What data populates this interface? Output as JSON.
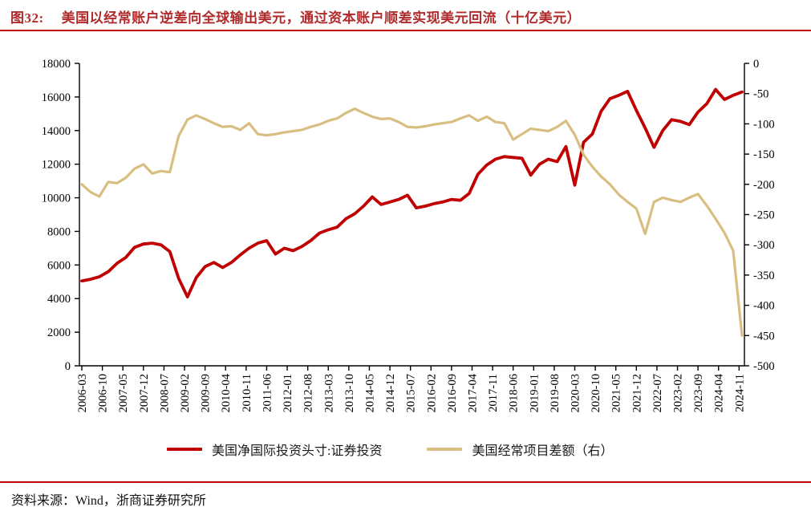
{
  "header": {
    "figure_no": "图32:",
    "title": "美国以经常账户逆差向全球输出美元，通过资本账户顺差实现美元回流（十亿美元）"
  },
  "source": "资料来源：Wind，浙商证券研究所",
  "colors": {
    "accent_rule": "#C00000",
    "title_text": "#B02B2B",
    "axis": "#000000",
    "line_red": "#C00000",
    "line_tan": "#D9BE82"
  },
  "chart_data": {
    "type": "line",
    "title": "美国以经常账户逆差向全球输出美元，通过资本账户顺差实现美元回流（十亿美元）",
    "unit": "十亿美元",
    "grid": false,
    "legend_position": "bottom",
    "x_tick_labels": [
      "2006-03",
      "2006-10",
      "2007-05",
      "2007-12",
      "2008-07",
      "2009-02",
      "2009-09",
      "2010-04",
      "2010-11",
      "2011-06",
      "2012-01",
      "2012-08",
      "2013-03",
      "2013-10",
      "2014-05",
      "2014-12",
      "2015-07",
      "2016-02",
      "2016-09",
      "2017-04",
      "2017-11",
      "2018-06",
      "2019-01",
      "2019-08",
      "2020-03",
      "2020-10",
      "2021-05",
      "2021-12",
      "2022-07",
      "2023-02",
      "2023-09",
      "2024-04",
      "2024-11"
    ],
    "periods": [
      "2006-03",
      "2006-06",
      "2006-09",
      "2006-12",
      "2007-03",
      "2007-06",
      "2007-09",
      "2007-12",
      "2008-03",
      "2008-06",
      "2008-09",
      "2008-12",
      "2009-03",
      "2009-06",
      "2009-09",
      "2009-12",
      "2010-03",
      "2010-06",
      "2010-09",
      "2010-12",
      "2011-03",
      "2011-06",
      "2011-09",
      "2011-12",
      "2012-03",
      "2012-06",
      "2012-09",
      "2012-12",
      "2013-03",
      "2013-06",
      "2013-09",
      "2013-12",
      "2014-03",
      "2014-06",
      "2014-09",
      "2014-12",
      "2015-03",
      "2015-06",
      "2015-09",
      "2015-12",
      "2016-03",
      "2016-06",
      "2016-09",
      "2016-12",
      "2017-03",
      "2017-06",
      "2017-09",
      "2017-12",
      "2018-03",
      "2018-06",
      "2018-09",
      "2018-12",
      "2019-03",
      "2019-06",
      "2019-09",
      "2019-12",
      "2020-03",
      "2020-06",
      "2020-09",
      "2020-12",
      "2021-03",
      "2021-06",
      "2021-09",
      "2021-12",
      "2022-03",
      "2022-06",
      "2022-09",
      "2022-12",
      "2023-03",
      "2023-06",
      "2023-09",
      "2023-12",
      "2024-03",
      "2024-06",
      "2024-09",
      "2024-12"
    ],
    "left_axis": {
      "min": 0,
      "max": 18000,
      "step": 2000,
      "tick_labels": [
        "0",
        "2000",
        "4000",
        "6000",
        "8000",
        "10000",
        "12000",
        "14000",
        "16000",
        "18000"
      ]
    },
    "right_axis": {
      "min": -500,
      "max": 0,
      "step": 50,
      "tick_labels": [
        "0",
        "-50",
        "-100",
        "-150",
        "-200",
        "-250",
        "-300",
        "-350",
        "-400",
        "-450",
        "-500"
      ]
    },
    "series": [
      {
        "name": "美国净国际投资头寸:证券投资",
        "axis": "left",
        "color": "#C00000",
        "values": [
          5050,
          5150,
          5300,
          5600,
          6100,
          6450,
          7050,
          7250,
          7300,
          7200,
          6800,
          5200,
          4100,
          5250,
          5900,
          6150,
          5850,
          6150,
          6600,
          7000,
          7300,
          7450,
          6650,
          7000,
          6850,
          7100,
          7450,
          7900,
          8100,
          8250,
          8750,
          9050,
          9500,
          10050,
          9600,
          9750,
          9900,
          10150,
          9400,
          9500,
          9650,
          9750,
          9900,
          9850,
          10250,
          11400,
          11950,
          12300,
          12450,
          12400,
          12350,
          11350,
          12000,
          12300,
          12150,
          13050,
          10750,
          13300,
          13800,
          15150,
          15900,
          16100,
          16340,
          15200,
          14150,
          13000,
          14000,
          14650,
          14550,
          14350,
          15100,
          15600,
          16450,
          15850,
          16100,
          16300
        ]
      },
      {
        "name": "美国经常项目差额（右）",
        "axis": "right",
        "color": "#D9BE82",
        "values": [
          -200,
          -213,
          -220,
          -196,
          -198,
          -189,
          -174,
          -167,
          -182,
          -178,
          -180,
          -120,
          -93,
          -86,
          -92,
          -99,
          -105,
          -104,
          -110,
          -99,
          -117,
          -119,
          -117,
          -114,
          -112,
          -110,
          -105,
          -101,
          -95,
          -91,
          -82,
          -75,
          -82,
          -88,
          -92,
          -91,
          -97,
          -105,
          -106,
          -104,
          -101,
          -99,
          -97,
          -91,
          -86,
          -95,
          -88,
          -97,
          -99,
          -126,
          -117,
          -108,
          -110,
          -112,
          -105,
          -95,
          -118,
          -151,
          -171,
          -187,
          -200,
          -217,
          -229,
          -240,
          -282,
          -229,
          -222,
          -226,
          -229,
          -222,
          -216,
          -235,
          -257,
          -280,
          -310,
          -450
        ]
      }
    ]
  }
}
